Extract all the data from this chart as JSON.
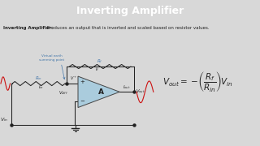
{
  "title": "Inverting Amplifier",
  "title_bg": "#2a2a2a",
  "title_color": "#ffffff",
  "subtitle_bold": "Inverting Amplifier:",
  "subtitle_rest": " Produces an output that is inverted and scaled based on resistor values.",
  "bg_color": "#d8d8d8",
  "opamp_fill": "#aaccdd",
  "opamp_edge": "#444444",
  "wire_color": "#222222",
  "label_color": "#222222",
  "note_color": "#4477aa",
  "sine_color": "#cc1111",
  "title_fontsize": 9,
  "subtitle_fontsize": 4.0
}
